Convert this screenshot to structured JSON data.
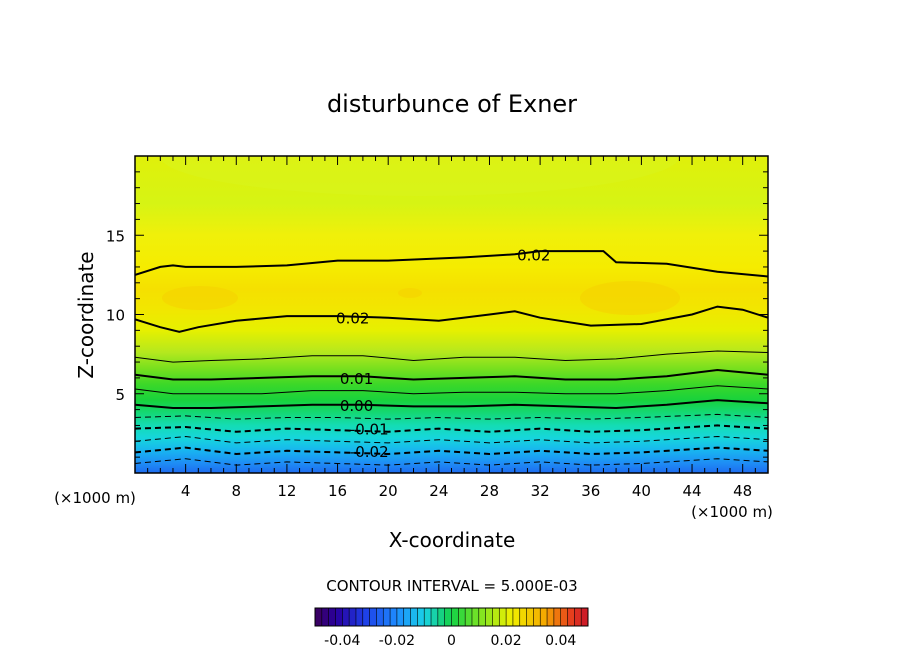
{
  "chart_data": {
    "type": "heatmap",
    "title": "disturbunce of Exner",
    "xlabel": "X-coordinate",
    "ylabel": "Z-coordinate",
    "x_unit": "(×1000 m)",
    "y_unit": "(×1000 m)",
    "xlim": [
      0,
      50
    ],
    "ylim": [
      0,
      20
    ],
    "x_ticks": [
      4,
      8,
      12,
      16,
      20,
      24,
      28,
      32,
      36,
      40,
      44,
      48
    ],
    "y_ticks": [
      5,
      10,
      15
    ],
    "contour_interval_text": "CONTOUR INTERVAL = 5.000E-03",
    "contour_labels": [
      {
        "text": "0.02",
        "x": 31.5,
        "z": 13.8
      },
      {
        "text": "0.02",
        "x": 17.2,
        "z": 9.8
      },
      {
        "text": "0.01",
        "x": 17.5,
        "z": 6.0
      },
      {
        "text": "0.00",
        "x": 17.5,
        "z": 4.3
      },
      {
        "text": "-0.01",
        "x": 18.5,
        "z": 2.8
      },
      {
        "text": "-0.02",
        "x": 18.5,
        "z": 1.4
      }
    ],
    "contours": [
      {
        "level": 0.02,
        "style": "thick",
        "points": [
          [
            0,
            12.5
          ],
          [
            2,
            13.0
          ],
          [
            3,
            13.1
          ],
          [
            4,
            13.0
          ],
          [
            8,
            13.0
          ],
          [
            12,
            13.1
          ],
          [
            16,
            13.4
          ],
          [
            20,
            13.4
          ],
          [
            26,
            13.6
          ],
          [
            30,
            13.8
          ],
          [
            32,
            14.0
          ],
          [
            37,
            14.0
          ],
          [
            38,
            13.3
          ],
          [
            42,
            13.2
          ],
          [
            46,
            12.7
          ],
          [
            50,
            12.4
          ]
        ]
      },
      {
        "level": 0.02,
        "style": "thick",
        "points": [
          [
            0,
            9.7
          ],
          [
            2,
            9.2
          ],
          [
            3.5,
            8.9
          ],
          [
            5,
            9.2
          ],
          [
            8,
            9.6
          ],
          [
            12,
            9.9
          ],
          [
            16,
            9.9
          ],
          [
            20,
            9.8
          ],
          [
            24,
            9.6
          ],
          [
            28,
            10.0
          ],
          [
            30,
            10.2
          ],
          [
            32,
            9.8
          ],
          [
            36,
            9.3
          ],
          [
            40,
            9.4
          ],
          [
            44,
            10.0
          ],
          [
            46,
            10.5
          ],
          [
            48,
            10.3
          ],
          [
            50,
            9.8
          ]
        ]
      },
      {
        "level": 0.015,
        "style": "thin",
        "points": [
          [
            0,
            7.3
          ],
          [
            3,
            7.0
          ],
          [
            6,
            7.1
          ],
          [
            10,
            7.2
          ],
          [
            14,
            7.4
          ],
          [
            18,
            7.4
          ],
          [
            22,
            7.1
          ],
          [
            26,
            7.3
          ],
          [
            30,
            7.3
          ],
          [
            34,
            7.1
          ],
          [
            38,
            7.2
          ],
          [
            42,
            7.5
          ],
          [
            46,
            7.7
          ],
          [
            50,
            7.6
          ]
        ]
      },
      {
        "level": 0.01,
        "style": "thick",
        "points": [
          [
            0,
            6.2
          ],
          [
            3,
            5.9
          ],
          [
            6,
            5.9
          ],
          [
            10,
            6.0
          ],
          [
            14,
            6.1
          ],
          [
            18,
            6.1
          ],
          [
            22,
            5.9
          ],
          [
            26,
            6.0
          ],
          [
            30,
            6.1
          ],
          [
            34,
            5.9
          ],
          [
            38,
            5.9
          ],
          [
            42,
            6.1
          ],
          [
            46,
            6.5
          ],
          [
            50,
            6.2
          ]
        ]
      },
      {
        "level": 0.005,
        "style": "thin",
        "points": [
          [
            0,
            5.3
          ],
          [
            3,
            5.0
          ],
          [
            6,
            5.0
          ],
          [
            10,
            5.0
          ],
          [
            14,
            5.2
          ],
          [
            18,
            5.2
          ],
          [
            22,
            5.0
          ],
          [
            26,
            5.1
          ],
          [
            30,
            5.1
          ],
          [
            34,
            5.0
          ],
          [
            38,
            5.0
          ],
          [
            42,
            5.2
          ],
          [
            46,
            5.5
          ],
          [
            50,
            5.3
          ]
        ]
      },
      {
        "level": 0.0,
        "style": "thick",
        "points": [
          [
            0,
            4.3
          ],
          [
            3,
            4.1
          ],
          [
            6,
            4.1
          ],
          [
            10,
            4.2
          ],
          [
            14,
            4.3
          ],
          [
            18,
            4.3
          ],
          [
            22,
            4.2
          ],
          [
            26,
            4.2
          ],
          [
            30,
            4.3
          ],
          [
            34,
            4.2
          ],
          [
            38,
            4.1
          ],
          [
            42,
            4.3
          ],
          [
            46,
            4.6
          ],
          [
            50,
            4.4
          ]
        ]
      },
      {
        "level": -0.005,
        "style": "thin-dashed",
        "points": [
          [
            0,
            3.5
          ],
          [
            4,
            3.6
          ],
          [
            8,
            3.4
          ],
          [
            12,
            3.5
          ],
          [
            16,
            3.5
          ],
          [
            20,
            3.4
          ],
          [
            24,
            3.5
          ],
          [
            28,
            3.4
          ],
          [
            32,
            3.5
          ],
          [
            36,
            3.4
          ],
          [
            40,
            3.5
          ],
          [
            46,
            3.7
          ],
          [
            50,
            3.5
          ]
        ]
      },
      {
        "level": -0.01,
        "style": "dashed",
        "points": [
          [
            0,
            2.8
          ],
          [
            4,
            2.9
          ],
          [
            8,
            2.6
          ],
          [
            12,
            2.8
          ],
          [
            16,
            2.7
          ],
          [
            20,
            2.6
          ],
          [
            24,
            2.8
          ],
          [
            28,
            2.6
          ],
          [
            32,
            2.8
          ],
          [
            36,
            2.6
          ],
          [
            40,
            2.7
          ],
          [
            46,
            3.0
          ],
          [
            50,
            2.8
          ]
        ]
      },
      {
        "level": -0.015,
        "style": "thin-dashed",
        "points": [
          [
            0,
            2.0
          ],
          [
            4,
            2.3
          ],
          [
            8,
            1.9
          ],
          [
            12,
            2.1
          ],
          [
            16,
            2.0
          ],
          [
            20,
            1.9
          ],
          [
            24,
            2.1
          ],
          [
            28,
            1.9
          ],
          [
            32,
            2.1
          ],
          [
            36,
            1.9
          ],
          [
            40,
            2.0
          ],
          [
            46,
            2.3
          ],
          [
            50,
            2.1
          ]
        ]
      },
      {
        "level": -0.02,
        "style": "dashed",
        "points": [
          [
            0,
            1.3
          ],
          [
            4,
            1.6
          ],
          [
            8,
            1.2
          ],
          [
            12,
            1.4
          ],
          [
            16,
            1.3
          ],
          [
            20,
            1.2
          ],
          [
            24,
            1.4
          ],
          [
            28,
            1.2
          ],
          [
            32,
            1.4
          ],
          [
            36,
            1.2
          ],
          [
            40,
            1.3
          ],
          [
            46,
            1.6
          ],
          [
            50,
            1.4
          ]
        ]
      },
      {
        "level": -0.025,
        "style": "thin-dashed",
        "points": [
          [
            0,
            0.6
          ],
          [
            4,
            0.9
          ],
          [
            8,
            0.5
          ],
          [
            12,
            0.7
          ],
          [
            16,
            0.6
          ],
          [
            20,
            0.5
          ],
          [
            24,
            0.7
          ],
          [
            28,
            0.5
          ],
          [
            32,
            0.7
          ],
          [
            36,
            0.5
          ],
          [
            40,
            0.6
          ],
          [
            46,
            0.9
          ],
          [
            50,
            0.7
          ]
        ]
      }
    ],
    "colorbar": {
      "min": -0.05,
      "max": 0.05,
      "ticks": [
        "-0.04",
        "-0.02",
        "0",
        "0.02",
        "0.04"
      ],
      "tick_values": [
        -0.04,
        -0.02,
        0,
        0.02,
        0.04
      ]
    },
    "colors": {
      "deep_purple": "#2a0080",
      "blue": "#1e64ff",
      "cyan": "#19d6e6",
      "green": "#14d23c",
      "yellow_green": "#c8f01e",
      "yellow": "#f5f000",
      "orange_yellow": "#f5dc00",
      "red": "#e6281e"
    }
  }
}
